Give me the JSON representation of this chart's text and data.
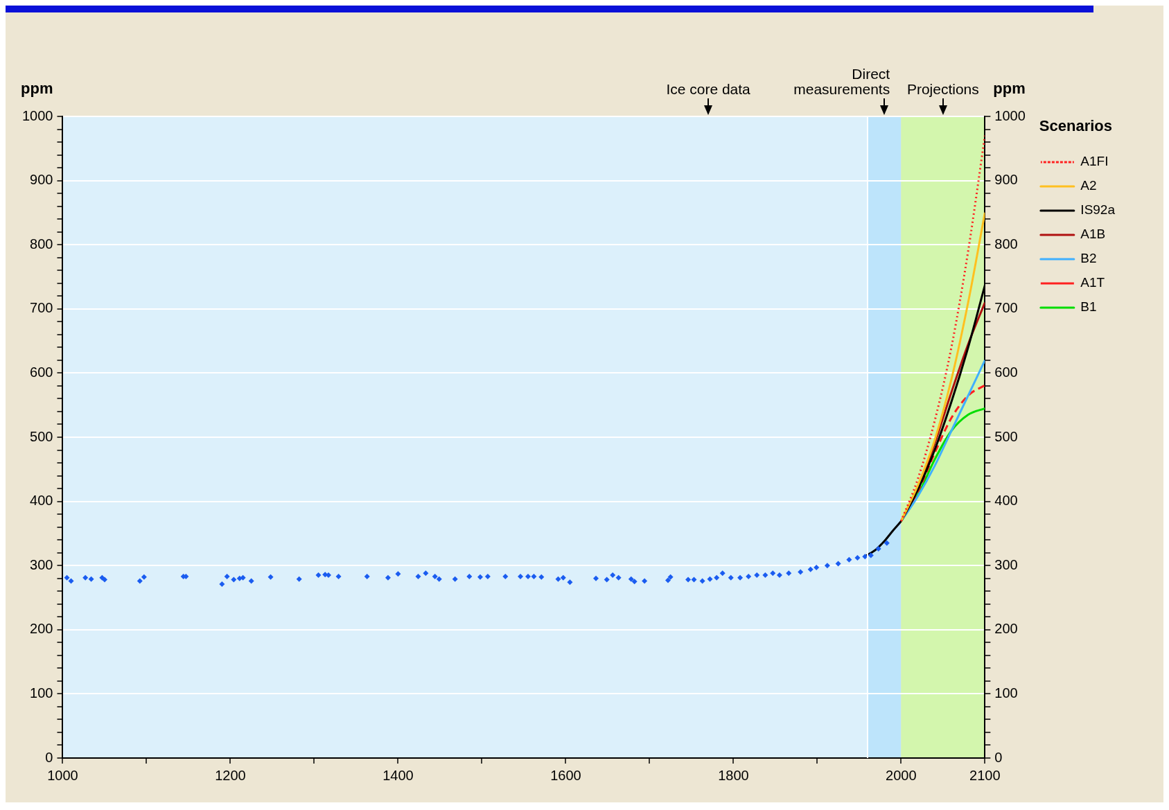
{
  "chart_data": {
    "type": "line",
    "ylabel": "ppm",
    "y2label": "ppm",
    "legend": "top right",
    "legend_title": "Scenarios",
    "grid": "y",
    "xlim": [
      1000,
      2100
    ],
    "xticks": [
      1000,
      {
        "value": 1100,
        "label": null
      },
      1200,
      {
        "value": 1300,
        "label": null
      },
      1400,
      {
        "value": 1500,
        "label": null
      },
      1600,
      {
        "value": 1700,
        "label": null
      },
      1800,
      {
        "value": 1900,
        "label": null
      },
      2000,
      2100
    ],
    "ylim": [
      0,
      1000
    ],
    "yticks": [
      0,
      {
        "value": 20,
        "label": null
      },
      {
        "value": 40,
        "label": null
      },
      {
        "value": 60,
        "label": null
      },
      {
        "value": 80,
        "label": null
      },
      100,
      {
        "value": 120,
        "label": null
      },
      {
        "value": 140,
        "label": null
      },
      {
        "value": 160,
        "label": null
      },
      {
        "value": 180,
        "label": null
      },
      200,
      {
        "value": 220,
        "label": null
      },
      {
        "value": 240,
        "label": null
      },
      {
        "value": 260,
        "label": null
      },
      {
        "value": 280,
        "label": null
      },
      300,
      {
        "value": 320,
        "label": null
      },
      {
        "value": 340,
        "label": null
      },
      {
        "value": 360,
        "label": null
      },
      {
        "value": 380,
        "label": null
      },
      400,
      {
        "value": 420,
        "label": null
      },
      {
        "value": 440,
        "label": null
      },
      {
        "value": 460,
        "label": null
      },
      {
        "value": 480,
        "label": null
      },
      500,
      {
        "value": 520,
        "label": null
      },
      {
        "value": 540,
        "label": null
      },
      {
        "value": 560,
        "label": null
      },
      {
        "value": 580,
        "label": null
      },
      600,
      {
        "value": 620,
        "label": null
      },
      {
        "value": 640,
        "label": null
      },
      {
        "value": 660,
        "label": null
      },
      {
        "value": 680,
        "label": null
      },
      700,
      {
        "value": 720,
        "label": null
      },
      {
        "value": 740,
        "label": null
      },
      {
        "value": 760,
        "label": null
      },
      {
        "value": 780,
        "label": null
      },
      800,
      {
        "value": 820,
        "label": null
      },
      {
        "value": 840,
        "label": null
      },
      {
        "value": 860,
        "label": null
      },
      {
        "value": 880,
        "label": null
      },
      900,
      {
        "value": 920,
        "label": null
      },
      {
        "value": 940,
        "label": null
      },
      {
        "value": 960,
        "label": null
      },
      {
        "value": 980,
        "label": null
      },
      1000
    ],
    "y2lim": [
      0,
      1000
    ],
    "y2ticks": [
      0,
      {
        "value": 20,
        "label": null
      },
      {
        "value": 40,
        "label": null
      },
      {
        "value": 60,
        "label": null
      },
      {
        "value": 80,
        "label": null
      },
      100,
      {
        "value": 120,
        "label": null
      },
      {
        "value": 140,
        "label": null
      },
      {
        "value": 160,
        "label": null
      },
      {
        "value": 180,
        "label": null
      },
      200,
      {
        "value": 220,
        "label": null
      },
      {
        "value": 240,
        "label": null
      },
      {
        "value": 260,
        "label": null
      },
      {
        "value": 280,
        "label": null
      },
      300,
      {
        "value": 320,
        "label": null
      },
      {
        "value": 340,
        "label": null
      },
      {
        "value": 360,
        "label": null
      },
      {
        "value": 380,
        "label": null
      },
      400,
      {
        "value": 420,
        "label": null
      },
      {
        "value": 440,
        "label": null
      },
      {
        "value": 460,
        "label": null
      },
      {
        "value": 480,
        "label": null
      },
      500,
      {
        "value": 520,
        "label": null
      },
      {
        "value": 540,
        "label": null
      },
      {
        "value": 560,
        "label": null
      },
      {
        "value": 580,
        "label": null
      },
      600,
      {
        "value": 620,
        "label": null
      },
      {
        "value": 640,
        "label": null
      },
      {
        "value": 660,
        "label": null
      },
      {
        "value": 680,
        "label": null
      },
      700,
      {
        "value": 720,
        "label": null
      },
      {
        "value": 740,
        "label": null
      },
      {
        "value": 760,
        "label": null
      },
      {
        "value": 780,
        "label": null
      },
      800,
      {
        "value": 820,
        "label": null
      },
      {
        "value": 840,
        "label": null
      },
      {
        "value": 860,
        "label": null
      },
      {
        "value": 880,
        "label": null
      },
      900,
      {
        "value": 920,
        "label": null
      },
      {
        "value": 940,
        "label": null
      },
      {
        "value": 960,
        "label": null
      },
      {
        "value": 980,
        "label": null
      },
      1000
    ],
    "bands": [
      {
        "axis": "x",
        "from": 1000,
        "to": 1960,
        "label": "Ice core data",
        "color": "#dcf0fb"
      },
      {
        "axis": "x",
        "from": 1960,
        "to": 2000,
        "label": "Direct measurements",
        "color": "#bde4fb"
      },
      {
        "axis": "x",
        "from": 2000,
        "to": 2100,
        "label": "Projections",
        "color": "#d3f6ad"
      }
    ],
    "series": [
      {
        "type": "scatter",
        "color": "#1a5cf0",
        "marker": "diamond",
        "x": [
          1005,
          1010,
          1027,
          1034,
          1047,
          1050,
          1092,
          1097,
          1144,
          1147,
          1190,
          1196,
          1204,
          1211,
          1215,
          1225,
          1248,
          1282,
          1305,
          1313,
          1317,
          1329,
          1363,
          1388,
          1400,
          1424,
          1433,
          1444,
          1449,
          1468,
          1485,
          1498,
          1507,
          1528,
          1546,
          1555,
          1562,
          1571,
          1591,
          1597,
          1605,
          1636,
          1649,
          1656,
          1663,
          1678,
          1682,
          1694,
          1722,
          1725,
          1746,
          1753,
          1763,
          1772,
          1780,
          1787,
          1797,
          1808,
          1818,
          1828,
          1838,
          1847,
          1855,
          1866,
          1880,
          1892,
          1899,
          1912,
          1925,
          1938,
          1948,
          1957,
          1964,
          1973,
          1983
        ],
        "values": [
          281,
          276,
          281,
          279,
          281,
          278,
          276,
          282,
          283,
          283,
          271,
          283,
          278,
          280,
          281,
          276,
          282,
          279,
          285,
          286,
          285,
          283,
          283,
          281,
          287,
          283,
          288,
          283,
          279,
          279,
          283,
          282,
          283,
          283,
          283,
          283,
          283,
          282,
          279,
          281,
          274,
          280,
          278,
          285,
          281,
          279,
          275,
          276,
          277,
          282,
          278,
          278,
          276,
          279,
          281,
          288,
          281,
          281,
          283,
          285,
          285,
          288,
          285,
          288,
          290,
          294,
          297,
          300,
          303,
          309,
          312,
          314,
          316,
          326,
          335
        ]
      },
      {
        "color": "#000000",
        "line_style": "solid",
        "x": [
          1958,
          1970,
          1980,
          1990,
          2000
        ],
        "values": [
          315,
          325,
          338,
          354,
          369
        ]
      },
      {
        "name": "A1FI",
        "color": "#ff2020",
        "line_style": "dotted",
        "x": [
          2000,
          2020,
          2040,
          2060,
          2080,
          2100
        ],
        "values": [
          369,
          435,
          525,
          640,
          790,
          970
        ]
      },
      {
        "name": "A2",
        "color": "#ffc020",
        "line_style": "solid",
        "x": [
          2000,
          2020,
          2040,
          2060,
          2080,
          2100
        ],
        "values": [
          369,
          425,
          495,
          590,
          710,
          850
        ]
      },
      {
        "name": "IS92a",
        "color": "#000000",
        "line_style": "solid",
        "x": [
          2000,
          2020,
          2040,
          2060,
          2080,
          2100
        ],
        "values": [
          369,
          418,
          480,
          555,
          640,
          737
        ]
      },
      {
        "name": "A1B",
        "color": "#b01010",
        "line_style": "solid",
        "x": [
          2000,
          2020,
          2040,
          2060,
          2080,
          2100
        ],
        "values": [
          369,
          420,
          490,
          570,
          645,
          710
        ]
      },
      {
        "name": "B2",
        "color": "#40b0ff",
        "line_style": "solid",
        "x": [
          2000,
          2020,
          2040,
          2060,
          2080,
          2100
        ],
        "values": [
          369,
          408,
          455,
          510,
          565,
          620
        ]
      },
      {
        "name": "A1T",
        "color": "#ff2020",
        "line_style": "dashed",
        "x": [
          2000,
          2020,
          2040,
          2060,
          2080,
          2100
        ],
        "values": [
          369,
          415,
          475,
          530,
          565,
          581
        ]
      },
      {
        "name": "B1",
        "color": "#00dd00",
        "line_style": "solid",
        "x": [
          2000,
          2020,
          2040,
          2060,
          2080,
          2100
        ],
        "values": [
          369,
          410,
          465,
          510,
          535,
          545
        ]
      }
    ]
  }
}
